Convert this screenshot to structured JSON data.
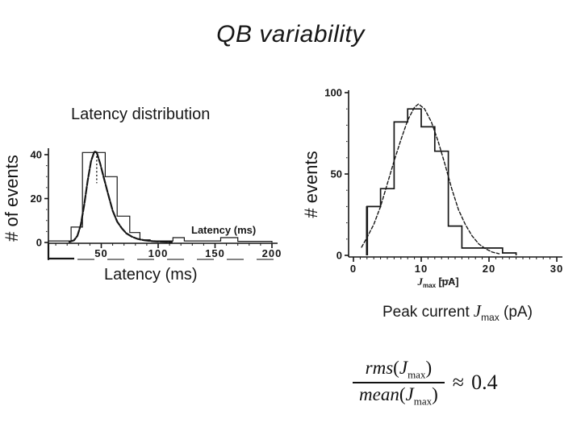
{
  "slide": {
    "title": "QB variability",
    "ink_color": "#161616",
    "background": "#ffffff"
  },
  "left_chart_labels": {
    "note": "labels bound from chart_data.0"
  },
  "right_chart": {
    "caption_prefix": "Peak current",
    "caption_symbol": "J",
    "caption_sub": "max",
    "caption_suffix": "(pA)"
  },
  "formula": {
    "num_func": "rms",
    "den_func": "mean",
    "arg_open": "(",
    "arg_symbol": "J",
    "arg_sub": "max",
    "arg_close": ")",
    "relation": "≈",
    "value": "0.4"
  },
  "chart_data": [
    {
      "type": "bar",
      "subtype": "histogram-with-fit-curve",
      "title": "Latency distribution",
      "xlabel": "Latency (ms)",
      "ylabel": "# of events",
      "inner_label": "Latency (ms)",
      "xlim": [
        0,
        205
      ],
      "ylim": [
        0,
        44
      ],
      "xticks": [
        50,
        100,
        150,
        200
      ],
      "xtick_minor_step": 10,
      "yticks": [
        0,
        20,
        40
      ],
      "ytick_minor_step": 5,
      "grid": false,
      "bins": [
        [
          3.5,
          23.5,
          0.7
        ],
        [
          23.5,
          33.5,
          7
        ],
        [
          33.5,
          53.5,
          41
        ],
        [
          53.5,
          64,
          30
        ],
        [
          64,
          75,
          12
        ],
        [
          75,
          84,
          4.5
        ],
        [
          84,
          93,
          1.2
        ],
        [
          93,
          113,
          0.7
        ],
        [
          113,
          123,
          2.2
        ],
        [
          123,
          155,
          0.7
        ],
        [
          155,
          170,
          2.2
        ],
        [
          170,
          200,
          0.5
        ]
      ],
      "curve": [
        [
          22,
          0.3
        ],
        [
          26,
          1
        ],
        [
          29,
          3
        ],
        [
          32,
          8
        ],
        [
          35,
          17
        ],
        [
          38,
          28
        ],
        [
          41,
          37
        ],
        [
          44,
          41.5
        ],
        [
          46,
          41
        ],
        [
          49,
          36
        ],
        [
          52,
          30
        ],
        [
          56,
          22
        ],
        [
          60,
          14.5
        ],
        [
          64,
          9.5
        ],
        [
          68,
          6.5
        ],
        [
          72,
          4.2
        ],
        [
          77,
          2.6
        ],
        [
          82,
          1.6
        ],
        [
          88,
          1
        ],
        [
          95,
          0.6
        ],
        [
          103,
          0.4
        ],
        [
          112,
          0.2
        ]
      ],
      "peak_line": {
        "x": 46,
        "from": 41,
        "to": 27
      }
    },
    {
      "type": "bar",
      "subtype": "histogram-with-fit-curve",
      "title": "",
      "xlabel": "Peak current Jmax (pA)",
      "ylabel": "# events",
      "inner_label_parts": {
        "symbol": "J",
        "sub": "max",
        "unit": "[pA]"
      },
      "xlim": [
        0,
        31
      ],
      "ylim": [
        0,
        104
      ],
      "xticks": [
        0,
        10,
        20,
        30
      ],
      "xtick_minor_step": 1,
      "yticks": [
        0,
        50,
        100
      ],
      "ytick_minor_step": 10,
      "grid": false,
      "bins": [
        [
          2,
          4,
          30
        ],
        [
          4,
          6,
          41
        ],
        [
          6,
          8,
          82
        ],
        [
          8,
          10,
          90
        ],
        [
          10,
          12,
          79
        ],
        [
          12,
          14,
          64
        ],
        [
          14,
          16,
          18
        ],
        [
          16,
          22,
          4.5
        ],
        [
          22,
          24,
          1.5
        ]
      ],
      "curve": [
        [
          1.2,
          5
        ],
        [
          2,
          11
        ],
        [
          3,
          19
        ],
        [
          4,
          30
        ],
        [
          5,
          44
        ],
        [
          6,
          58
        ],
        [
          7,
          71
        ],
        [
          8,
          83
        ],
        [
          9,
          91
        ],
        [
          9.6,
          93
        ],
        [
          10.5,
          90
        ],
        [
          11.5,
          82
        ],
        [
          12.5,
          70
        ],
        [
          13.5,
          56
        ],
        [
          14.5,
          41
        ],
        [
          15.5,
          28
        ],
        [
          16.5,
          19
        ],
        [
          17.5,
          12
        ],
        [
          18.5,
          7
        ],
        [
          19.5,
          4
        ],
        [
          20.5,
          2
        ],
        [
          21.5,
          1
        ]
      ]
    }
  ]
}
